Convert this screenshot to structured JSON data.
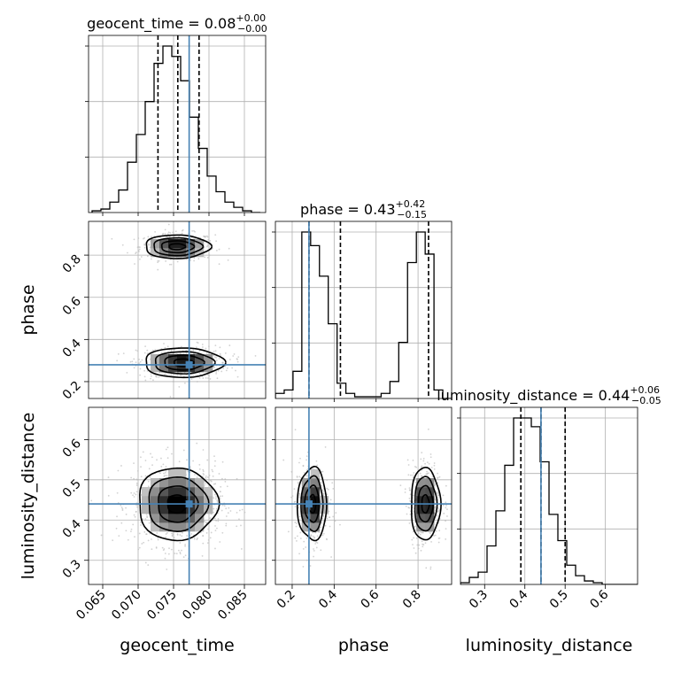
{
  "chart_data": {
    "type": "corner",
    "parameters": [
      {
        "name": "geocent_time",
        "range": [
          0.063,
          0.088
        ],
        "ticks": [
          "0.065",
          "0.070",
          "0.075",
          "0.080",
          "0.085"
        ],
        "truth": 0.0772,
        "quantiles": [
          0.0728,
          0.0756,
          0.0786
        ]
      },
      {
        "name": "phase",
        "range": [
          0.12,
          0.96
        ],
        "ticks": [
          "0.2",
          "0.4",
          "0.6",
          "0.8"
        ],
        "truth": 0.28,
        "quantiles": [
          0.28,
          0.43,
          0.85
        ]
      },
      {
        "name": "luminosity_distance",
        "range": [
          0.24,
          0.68
        ],
        "ticks": [
          "0.3",
          "0.4",
          "0.5",
          "0.6"
        ],
        "truth": 0.44,
        "quantiles": [
          0.39,
          0.44,
          0.5
        ]
      }
    ],
    "titles": [
      {
        "label": "geocent_time = 0.08",
        "sup": "+0.00",
        "sub": "−0.00"
      },
      {
        "label": "phase = 0.43",
        "sup": "+0.42",
        "sub": "−0.15"
      },
      {
        "label": "luminosity_distance = 0.44",
        "sup": "+0.06",
        "sub": "−0.05"
      }
    ],
    "histograms": {
      "geocent_time": {
        "bins_start": 0.0635,
        "bin_width": 0.00125,
        "counts": [
          1,
          2,
          6,
          13,
          29,
          45,
          64,
          86,
          96,
          90,
          76,
          55,
          37,
          21,
          12,
          6,
          3,
          1,
          0
        ]
      },
      "phase": {
        "bins_start": 0.12,
        "bin_width": 0.042,
        "counts": [
          3,
          5,
          16,
          98,
          90,
          72,
          44,
          9,
          3,
          1,
          1,
          1,
          3,
          10,
          33,
          80,
          98,
          85,
          5,
          0
        ]
      },
      "luminosity_distance": {
        "bins_start": 0.24,
        "bin_width": 0.022,
        "counts": [
          1,
          4,
          7,
          22,
          42,
          68,
          95,
          95,
          90,
          70,
          40,
          25,
          11,
          5,
          2,
          1,
          0,
          0,
          0,
          0
        ]
      }
    },
    "blobs": [
      {
        "x": "geocent_time",
        "y": "phase",
        "cx": 0.0755,
        "cy": 0.84,
        "sx": 0.0023,
        "sy": 0.028,
        "weight": 0.5
      },
      {
        "x": "geocent_time",
        "y": "phase",
        "cx": 0.0764,
        "cy": 0.29,
        "sx": 0.0028,
        "sy": 0.035,
        "weight": 0.5
      },
      {
        "x": "geocent_time",
        "y": "luminosity_distance",
        "cx": 0.0755,
        "cy": 0.44,
        "sx": 0.0028,
        "sy": 0.045,
        "weight": 1.0
      },
      {
        "x": "phase",
        "y": "luminosity_distance",
        "cx": 0.295,
        "cy": 0.44,
        "sx": 0.035,
        "sy": 0.045,
        "weight": 0.5
      },
      {
        "x": "phase",
        "y": "luminosity_distance",
        "cx": 0.835,
        "cy": 0.44,
        "sx": 0.035,
        "sy": 0.045,
        "weight": 0.5
      }
    ],
    "colors": {
      "truth": "#4682b4",
      "hist": "#000000",
      "grid": "#b0b0b0",
      "scatter": "#bfbfbf"
    },
    "grid": true
  }
}
